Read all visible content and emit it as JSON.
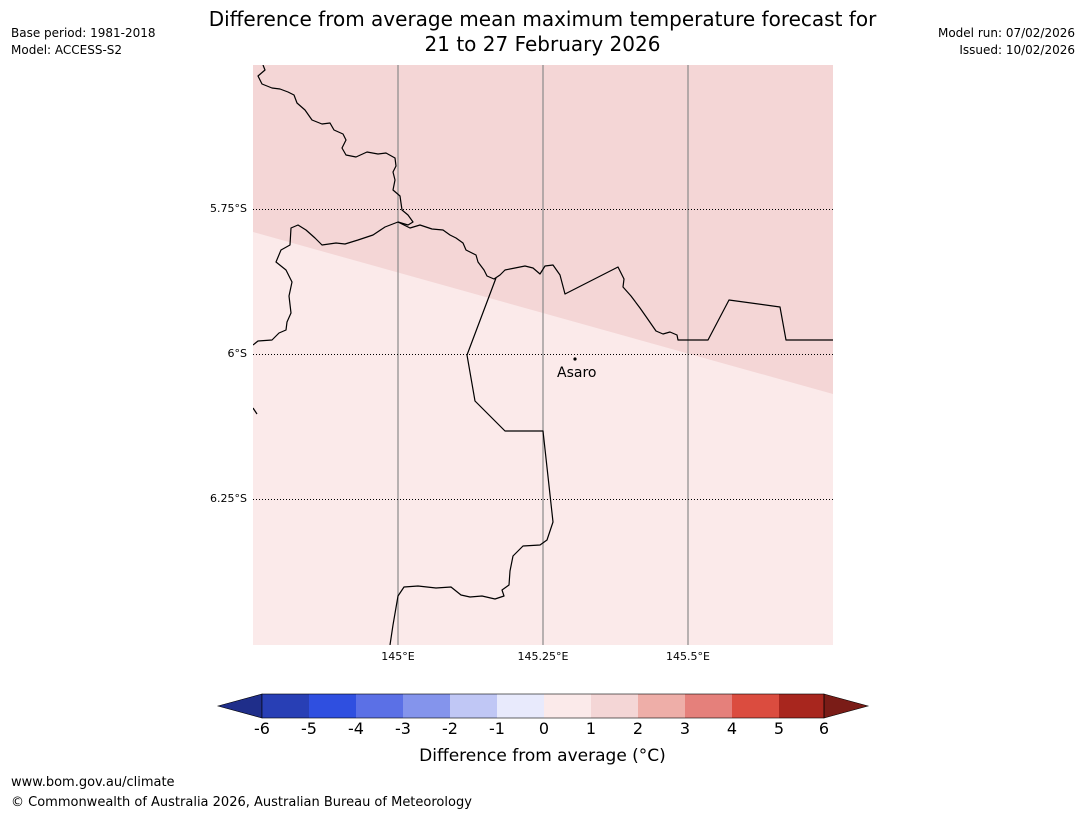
{
  "header": {
    "title_line1": "Difference from average mean maximum temperature forecast for",
    "title_line2": "21 to 27 February 2026",
    "base_period": "Base period: 1981-2018",
    "model": "Model: ACCESS-S2",
    "model_run": "Model run: 07/02/2026",
    "issued": "Issued: 10/02/2026"
  },
  "map": {
    "lat_labels": [
      "5.75°S",
      "6°S",
      "6.25°S"
    ],
    "lon_labels": [
      "145°E",
      "145.25°E",
      "145.5°E"
    ],
    "place_label": "Asaro",
    "anomaly_zones": [
      {
        "range": "1 to 2",
        "color": "#f4d6d6"
      },
      {
        "range": "0 to 1",
        "color": "#fbeaea"
      }
    ]
  },
  "colorbar": {
    "tick_labels": [
      "-6",
      "-5",
      "-4",
      "-3",
      "-2",
      "-1",
      "0",
      "1",
      "2",
      "3",
      "4",
      "5",
      "6"
    ],
    "colors": [
      "#1f2e8a",
      "#283fb5",
      "#2f4fe0",
      "#5b70e6",
      "#8494ec",
      "#c0c7f5",
      "#e8eafc",
      "#fbeaea",
      "#f4d6d6",
      "#eeaea8",
      "#e5807b",
      "#db4c3f",
      "#a8261e",
      "#7a1c17"
    ],
    "label": "Difference from average (°C)"
  },
  "footer": {
    "website": "www.bom.gov.au/climate",
    "copyright": "© Commonwealth of Australia 2026, Australian Bureau of Meteorology"
  }
}
